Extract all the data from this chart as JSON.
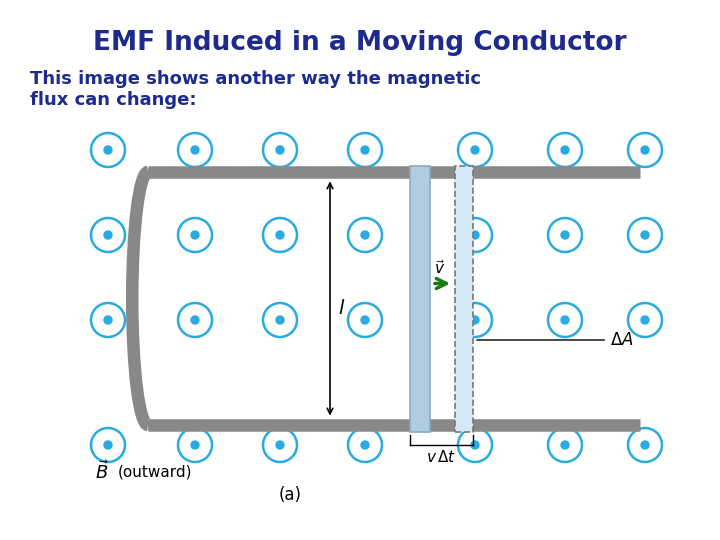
{
  "title": "EMF Induced in a Moving Conductor",
  "subtitle": "This image shows another way the magnetic\nflux can change:",
  "title_color": "#1E2A8C",
  "subtitle_color": "#1E2A8C",
  "bg_color": "#ffffff",
  "cyan_color": "#29ABE2",
  "gray_color": "#888888",
  "conductor_color": "#B0CCE0",
  "arrow_color": "#1A7A1A",
  "figsize": [
    7.2,
    5.4
  ],
  "dpi": 100
}
